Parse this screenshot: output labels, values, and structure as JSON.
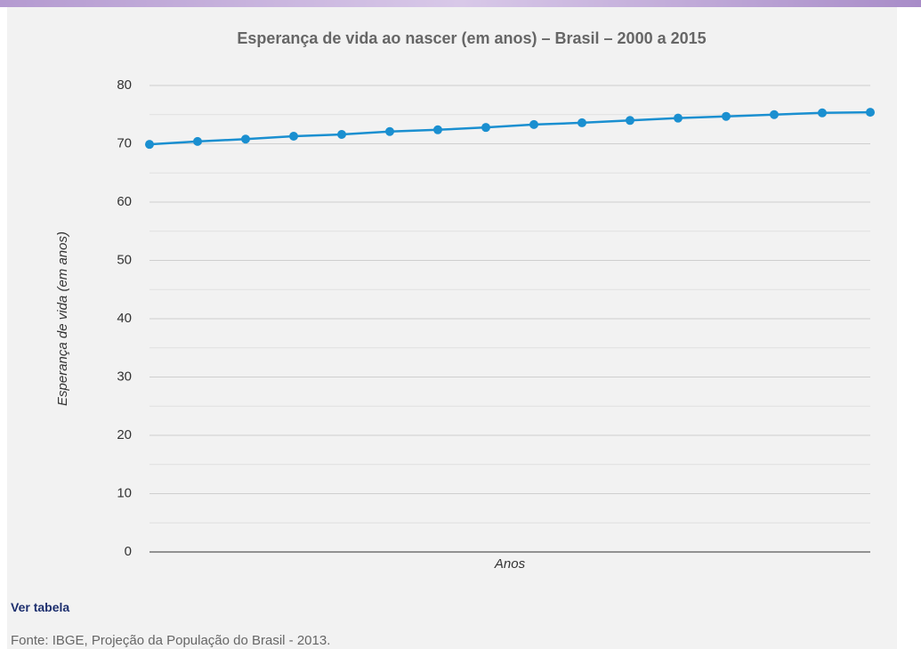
{
  "chart_data": {
    "type": "line",
    "title": "Esperança de vida ao nascer (em anos) – Brasil – 2000 a 2015",
    "ylabel": "Esperança de vida (em anos)",
    "xlabel": "Anos",
    "categories": [
      null,
      null,
      null,
      null,
      null,
      null,
      null,
      null,
      null,
      null,
      null,
      null,
      null,
      null,
      null,
      null
    ],
    "series": [
      {
        "name": "Esperança de vida",
        "color": "#1a8fd0",
        "values": [
          69.9,
          70.4,
          70.8,
          71.3,
          71.6,
          72.1,
          72.4,
          72.8,
          73.3,
          73.6,
          74.0,
          74.4,
          74.7,
          75.0,
          75.3,
          75.4
        ]
      }
    ],
    "ylim": [
      0,
      80
    ],
    "yticks": [
      0,
      10,
      20,
      30,
      40,
      50,
      60,
      70,
      80
    ],
    "yminorticks": [
      5,
      15,
      25,
      35,
      45,
      55,
      65,
      75
    ],
    "grid": true
  },
  "link": "Ver tabela",
  "source": "Fonte: IBGE, Projeção da População do Brasil - 2013."
}
